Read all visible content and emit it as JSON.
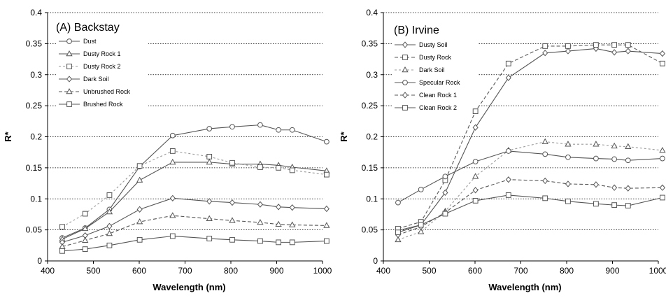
{
  "chart_data": [
    {
      "type": "line",
      "title": "(A) Backstay",
      "xlabel": "Wavelength (nm)",
      "ylabel": "R*",
      "xlim": [
        400,
        1000
      ],
      "ylim": [
        0,
        0.4
      ],
      "xticks": [
        "400",
        "500",
        "600",
        "700",
        "800",
        "900",
        "1000"
      ],
      "yticks": [
        "0",
        "0.05",
        "0.1",
        "0.15",
        "0.2",
        "0.25",
        "0.3",
        "0.35",
        "0.4"
      ],
      "grid": "horizontal dotted",
      "legend_position": "top-left",
      "x": [
        432,
        482,
        535,
        601,
        673,
        753,
        803,
        864,
        904,
        934,
        1009
      ],
      "series": [
        {
          "name": "Dust",
          "marker": "circle",
          "dash": "solid",
          "color": "#555555",
          "values": [
            0.037,
            0.053,
            0.083,
            0.152,
            0.202,
            0.213,
            0.216,
            0.219,
            0.211,
            0.211,
            0.192
          ]
        },
        {
          "name": "Dusty Rock 1",
          "marker": "triangle",
          "dash": "solid",
          "color": "#555555",
          "values": [
            0.035,
            0.052,
            0.079,
            0.13,
            0.159,
            0.159,
            0.156,
            0.156,
            0.154,
            0.151,
            0.145
          ]
        },
        {
          "name": "Dusty Rock 2",
          "marker": "square",
          "dash": "dashed-light",
          "color": "#999999",
          "values": [
            0.055,
            0.076,
            0.106,
            0.153,
            0.177,
            0.168,
            0.158,
            0.151,
            0.15,
            0.146,
            0.139
          ]
        },
        {
          "name": "Dark Soil",
          "marker": "diamond",
          "dash": "solid",
          "color": "#555555",
          "values": [
            0.03,
            0.041,
            0.056,
            0.083,
            0.101,
            0.096,
            0.094,
            0.091,
            0.087,
            0.086,
            0.084
          ]
        },
        {
          "name": "Unbrushed Rock",
          "marker": "triangle",
          "dash": "dashed",
          "color": "#555555",
          "values": [
            0.023,
            0.033,
            0.044,
            0.063,
            0.073,
            0.068,
            0.065,
            0.062,
            0.059,
            0.058,
            0.057
          ]
        },
        {
          "name": "Brushed Rock",
          "marker": "square",
          "dash": "solid",
          "color": "#555555",
          "values": [
            0.016,
            0.019,
            0.025,
            0.034,
            0.04,
            0.036,
            0.034,
            0.032,
            0.03,
            0.03,
            0.032
          ]
        }
      ]
    },
    {
      "type": "line",
      "title": "(B) Irvine",
      "xlabel": "Wavelength (nm)",
      "ylabel": "R*",
      "xlim": [
        400,
        1000
      ],
      "ylim": [
        0,
        0.4
      ],
      "xticks": [
        "400",
        "500",
        "600",
        "700",
        "800",
        "900",
        "1000"
      ],
      "yticks": [
        "0",
        "0.05",
        "0.1",
        "0.15",
        "0.2",
        "0.25",
        "0.3",
        "0.35",
        "0.4"
      ],
      "grid": "horizontal dotted",
      "legend_position": "top-left",
      "x": [
        432,
        482,
        535,
        601,
        673,
        753,
        803,
        864,
        904,
        934,
        1009
      ],
      "series": [
        {
          "name": "Dusty Soil",
          "marker": "diamond",
          "dash": "solid",
          "color": "#555555",
          "values": [
            0.049,
            0.058,
            0.11,
            0.215,
            0.295,
            0.335,
            0.338,
            0.342,
            0.336,
            0.338,
            0.334
          ]
        },
        {
          "name": "Dusty Rock",
          "marker": "square",
          "dash": "dashed",
          "color": "#555555",
          "values": [
            0.052,
            0.063,
            0.13,
            0.241,
            0.318,
            0.346,
            0.346,
            0.348,
            0.348,
            0.348,
            0.318
          ]
        },
        {
          "name": "Dark Soil",
          "marker": "triangle",
          "dash": "dashed-light",
          "color": "#999999",
          "values": [
            0.034,
            0.047,
            0.08,
            0.136,
            0.178,
            0.192,
            0.188,
            0.188,
            0.185,
            0.184,
            0.178
          ]
        },
        {
          "name": "Specular Rock",
          "marker": "circle",
          "dash": "solid",
          "color": "#555555",
          "values": [
            0.094,
            0.115,
            0.136,
            0.16,
            0.177,
            0.172,
            0.167,
            0.165,
            0.164,
            0.162,
            0.165
          ]
        },
        {
          "name": "Clean Rock 1",
          "marker": "diamond",
          "dash": "dashed",
          "color": "#555555",
          "values": [
            0.042,
            0.055,
            0.078,
            0.114,
            0.131,
            0.129,
            0.124,
            0.123,
            0.118,
            0.117,
            0.118
          ]
        },
        {
          "name": "Clean Rock 2",
          "marker": "square",
          "dash": "solid",
          "color": "#555555",
          "values": [
            0.046,
            0.058,
            0.076,
            0.097,
            0.106,
            0.101,
            0.096,
            0.092,
            0.09,
            0.089,
            0.102
          ]
        }
      ]
    }
  ]
}
